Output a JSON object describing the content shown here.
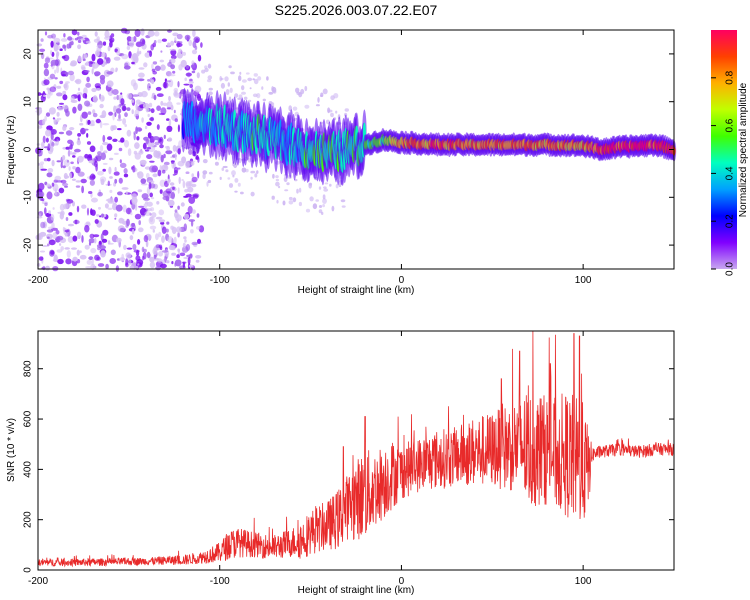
{
  "title": "S225.2026.003.07.22.E07",
  "colors": {
    "signal": "#ff0000",
    "snr_line": "#e82a2a",
    "noise": "#7b2fd6",
    "frame": "#000000"
  },
  "chart_data": [
    {
      "type": "heatmap",
      "name": "spectrogram",
      "xlabel": "Height of straight line (km)",
      "ylabel": "Frequency (Hz)",
      "xlim": [
        -200,
        150
      ],
      "ylim": [
        -25,
        25
      ],
      "xticks": [
        -200,
        -100,
        0,
        100
      ],
      "xtick_labels": [
        "-200",
        "-100",
        "0",
        "100"
      ],
      "yticks": [
        -20,
        -10,
        0,
        10,
        20
      ],
      "ytick_labels": [
        "-20",
        "-10",
        "0",
        "10",
        "20"
      ],
      "colorbar": {
        "label": "Normalized spectral amplitude",
        "range": [
          0,
          1
        ],
        "ticks": [
          0.0,
          0.2,
          0.4,
          0.6,
          0.8
        ],
        "tick_labels": [
          "0.0",
          "0.2",
          "0.4",
          "0.6",
          "0.8"
        ],
        "colormap": [
          "#c8a8f0",
          "#8000ff",
          "#0000ff",
          "#00a0ff",
          "#00ffc0",
          "#40ff00",
          "#c0ff00",
          "#ffb000",
          "#ff4000",
          "#ff0060"
        ]
      },
      "noise_region_x": [
        -200,
        -110
      ],
      "transition_region_x": [
        -110,
        -30
      ],
      "signal_track": {
        "x": [
          -120,
          -110,
          -100,
          -90,
          -80,
          -70,
          -60,
          -50,
          -40,
          -30,
          -20,
          -10,
          0,
          20,
          40,
          60,
          80,
          100,
          110,
          120,
          140,
          150
        ],
        "freq": [
          6,
          5,
          5,
          4,
          3,
          2,
          1,
          0,
          -1,
          0,
          1,
          2,
          1.5,
          1,
          1,
          1,
          1,
          0.8,
          0,
          0.5,
          1,
          0
        ],
        "amplitude": [
          0.3,
          0.35,
          0.4,
          0.4,
          0.45,
          0.4,
          0.4,
          0.5,
          0.5,
          0.45,
          0.5,
          0.55,
          0.8,
          0.85,
          0.8,
          0.85,
          0.8,
          0.75,
          0.95,
          0.95,
          0.95,
          0.9
        ]
      }
    },
    {
      "type": "line",
      "name": "snr",
      "xlabel": "Height of straight line (km)",
      "ylabel": "SNR (10 * v/v)",
      "xlim": [
        -200,
        150
      ],
      "ylim": [
        0,
        950
      ],
      "xticks": [
        -200,
        -100,
        0,
        100
      ],
      "xtick_labels": [
        "-200",
        "-100",
        "0",
        "100"
      ],
      "yticks": [
        0,
        200,
        400,
        600,
        800
      ],
      "ytick_labels": [
        "0",
        "200",
        "400",
        "600",
        "800"
      ],
      "series": [
        {
          "name": "SNR",
          "x": [
            -200,
            -180,
            -160,
            -140,
            -120,
            -110,
            -100,
            -95,
            -90,
            -80,
            -70,
            -60,
            -55,
            -50,
            -40,
            -35,
            -30,
            -25,
            -20,
            -15,
            -10,
            -5,
            0,
            10,
            20,
            30,
            40,
            50,
            60,
            65,
            70,
            80,
            85,
            90,
            95,
            100,
            103,
            105,
            110,
            120,
            130,
            140,
            150
          ],
          "mean": [
            30,
            30,
            32,
            35,
            40,
            50,
            70,
            100,
            110,
            100,
            90,
            110,
            120,
            150,
            180,
            200,
            250,
            280,
            300,
            320,
            350,
            380,
            390,
            420,
            440,
            450,
            470,
            480,
            490,
            500,
            470,
            480,
            460,
            460,
            440,
            420,
            400,
            460,
            470,
            480,
            470,
            480,
            480
          ],
          "spread": [
            15,
            15,
            15,
            15,
            20,
            25,
            40,
            60,
            60,
            50,
            50,
            60,
            80,
            90,
            100,
            120,
            130,
            160,
            180,
            160,
            150,
            140,
            110,
            110,
            120,
            120,
            140,
            150,
            180,
            200,
            240,
            220,
            230,
            250,
            260,
            250,
            160,
            30,
            25,
            25,
            25,
            25,
            25
          ],
          "peaks": [
            [
              -32,
              490
            ],
            [
              -20,
              610
            ],
            [
              55,
              760
            ],
            [
              65,
              870
            ],
            [
              82,
              820
            ],
            [
              95,
              940
            ],
            [
              98,
              930
            ]
          ]
        }
      ]
    }
  ]
}
